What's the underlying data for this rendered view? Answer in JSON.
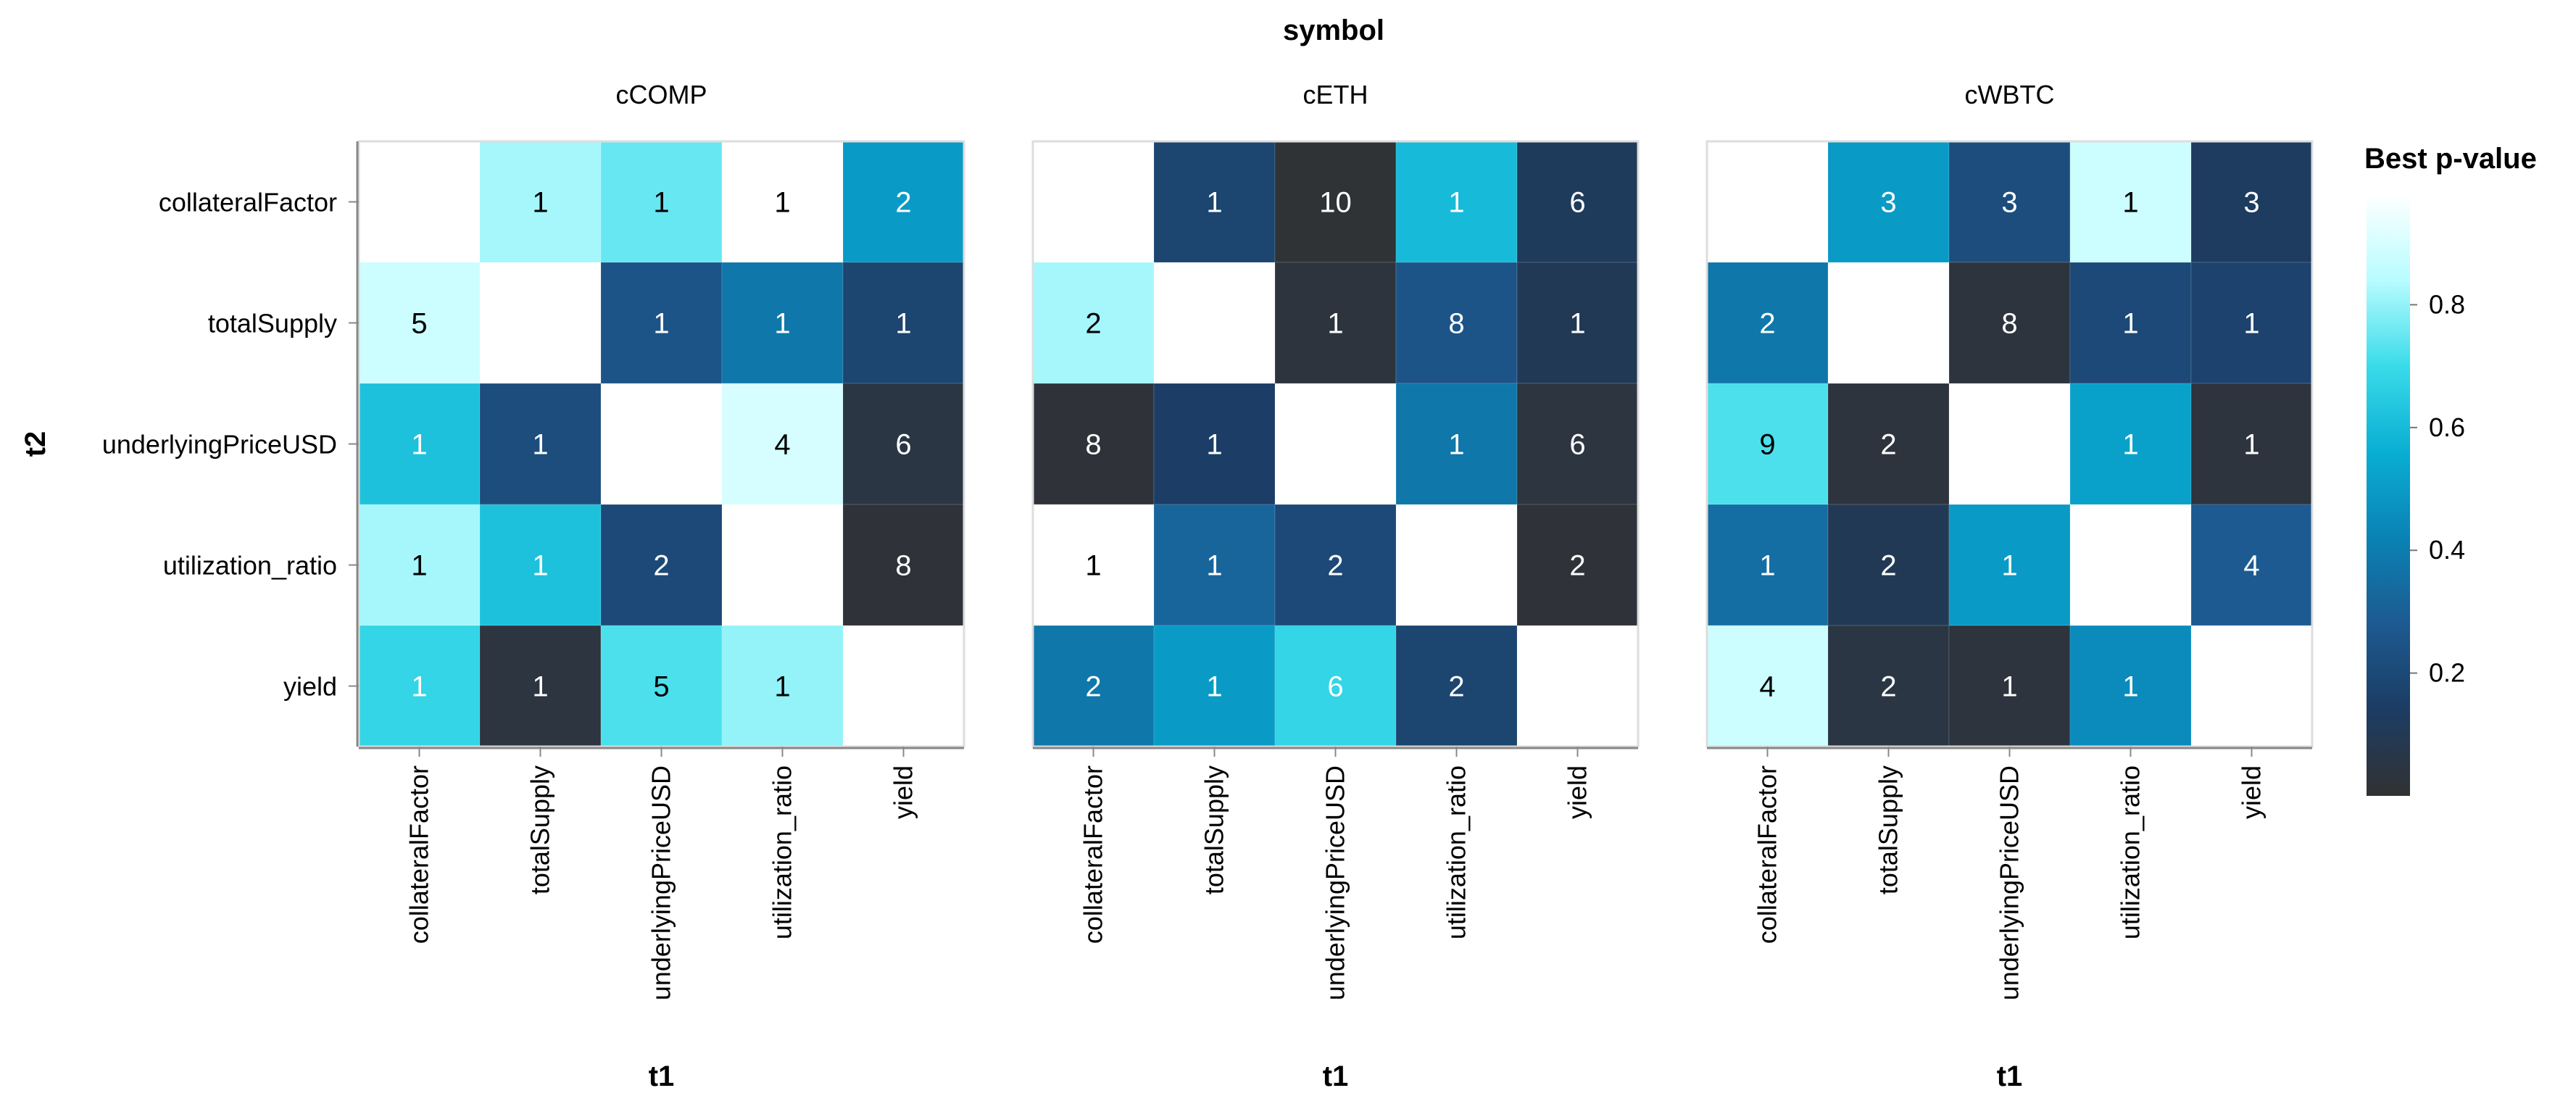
{
  "chart_data": {
    "type": "heatmap",
    "title": "symbol",
    "xlabel": "t1",
    "ylabel": "t2",
    "legend": {
      "title": "Best p-value",
      "ticks": [
        "0.2",
        "0.4",
        "0.6",
        "0.8"
      ],
      "tick_values": [
        0.2,
        0.4,
        0.6,
        0.8
      ],
      "domain": [
        0.0,
        0.98
      ],
      "position": "right"
    },
    "colors": {
      "scale": [
        "#323232",
        "#1c3c63",
        "#1d5a91",
        "#0a82b4",
        "#09aed3",
        "#3adbe9",
        "#b7fcff",
        "#ffffff"
      ]
    },
    "variables": [
      "collateralFactor",
      "totalSupply",
      "underlyingPriceUSD",
      "utilization_ratio",
      "yield"
    ],
    "facets": [
      {
        "name": "cCOMP",
        "labels": [
          [
            "",
            "1",
            "1",
            "1",
            "2"
          ],
          [
            "5",
            "",
            "1",
            "1",
            "1"
          ],
          [
            "1",
            "1",
            "",
            "4",
            "6"
          ],
          [
            "1",
            "1",
            "2",
            "",
            "8"
          ],
          [
            "1",
            "1",
            "5",
            "1",
            ""
          ]
        ],
        "pvalues": [
          [
            null,
            0.82,
            0.75,
            0.98,
            0.5
          ],
          [
            0.88,
            null,
            0.25,
            0.38,
            0.18
          ],
          [
            0.62,
            0.22,
            null,
            0.9,
            0.05
          ],
          [
            0.82,
            0.62,
            0.2,
            null,
            0.02
          ],
          [
            0.68,
            0.04,
            0.72,
            0.8,
            null
          ]
        ]
      },
      {
        "name": "cETH",
        "labels": [
          [
            "",
            "1",
            "10",
            "1",
            "6"
          ],
          [
            "2",
            "",
            "1",
            "8",
            "1"
          ],
          [
            "8",
            "1",
            "",
            "1",
            "6"
          ],
          [
            "1",
            "1",
            "2",
            "",
            "2"
          ],
          [
            "2",
            "1",
            "6",
            "2",
            ""
          ]
        ],
        "pvalues": [
          [
            null,
            0.18,
            0.01,
            0.6,
            0.12
          ],
          [
            0.82,
            null,
            0.03,
            0.25,
            0.1
          ],
          [
            0.02,
            0.15,
            null,
            0.38,
            0.04
          ],
          [
            0.98,
            0.32,
            0.2,
            null,
            0.02
          ],
          [
            0.38,
            0.5,
            0.68,
            0.18,
            null
          ]
        ]
      },
      {
        "name": "cWBTC",
        "labels": [
          [
            "",
            "3",
            "3",
            "1",
            "3"
          ],
          [
            "2",
            "",
            "8",
            "1",
            "1"
          ],
          [
            "9",
            "2",
            "",
            "1",
            "1"
          ],
          [
            "1",
            "2",
            "1",
            "",
            "4"
          ],
          [
            "4",
            "2",
            "1",
            "1",
            ""
          ]
        ],
        "pvalues": [
          [
            null,
            0.5,
            0.22,
            0.88,
            0.13
          ],
          [
            0.38,
            null,
            0.03,
            0.2,
            0.17
          ],
          [
            0.72,
            0.03,
            null,
            0.52,
            0.03
          ],
          [
            0.35,
            0.1,
            0.5,
            null,
            0.28
          ],
          [
            0.88,
            0.05,
            0.03,
            0.45,
            null
          ]
        ]
      }
    ]
  }
}
